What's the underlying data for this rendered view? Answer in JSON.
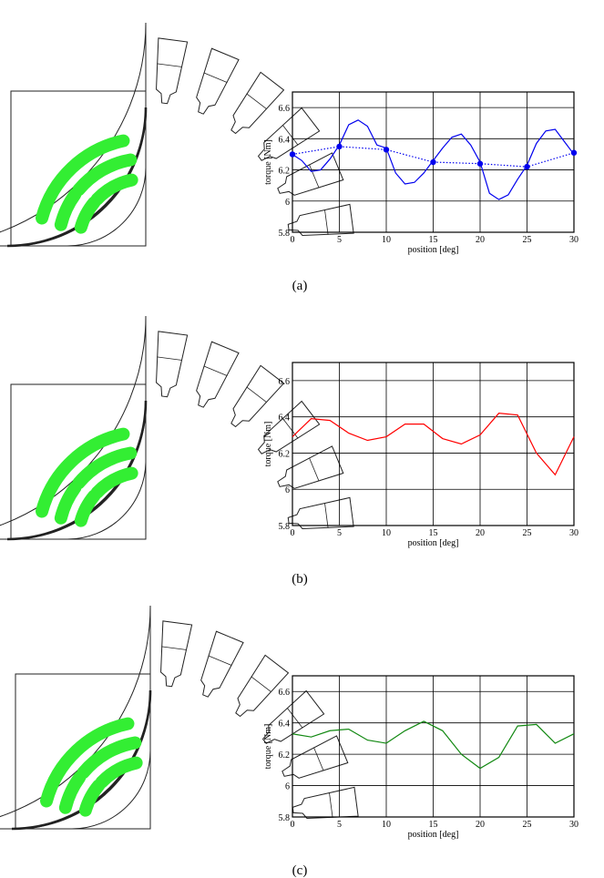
{
  "panels": [
    {
      "label": "(a)"
    },
    {
      "label": "(b)"
    },
    {
      "label": "(c)"
    }
  ],
  "colors": {
    "magnet": "#33ee33",
    "series_a": "#0000ee",
    "series_b": "#ff0000",
    "series_c": "#118811"
  },
  "chart_data": [
    {
      "type": "line",
      "xlabel": "position [deg]",
      "ylabel": "torque [Nm]",
      "xlim": [
        0,
        30
      ],
      "ylim": [
        5.8,
        6.7
      ],
      "xticks": [
        0,
        5,
        10,
        15,
        20,
        25,
        30
      ],
      "yticks": [
        5.8,
        6,
        6.2,
        6.4,
        6.6
      ],
      "grid": true,
      "series": [
        {
          "style": "solid",
          "x": [
            0,
            1,
            2,
            3,
            4,
            5,
            6,
            7,
            8,
            9,
            10,
            11,
            12,
            13,
            14,
            15,
            16,
            17,
            18,
            19,
            20,
            21,
            22,
            23,
            24,
            25,
            26,
            27,
            28,
            29,
            30
          ],
          "y": [
            6.3,
            6.26,
            6.19,
            6.2,
            6.27,
            6.36,
            6.49,
            6.52,
            6.48,
            6.36,
            6.34,
            6.18,
            6.11,
            6.12,
            6.18,
            6.26,
            6.34,
            6.41,
            6.43,
            6.36,
            6.25,
            6.05,
            6.01,
            6.04,
            6.14,
            6.23,
            6.37,
            6.45,
            6.46,
            6.38,
            6.3
          ]
        },
        {
          "style": "dotted-markers",
          "x": [
            0,
            5,
            10,
            15,
            20,
            25,
            30
          ],
          "y": [
            6.3,
            6.35,
            6.33,
            6.25,
            6.24,
            6.22,
            6.31
          ]
        }
      ]
    },
    {
      "type": "line",
      "xlabel": "position [deg]",
      "ylabel": "torque [Nm]",
      "xlim": [
        0,
        30
      ],
      "ylim": [
        5.8,
        6.7
      ],
      "xticks": [
        0,
        5,
        10,
        15,
        20,
        25,
        30
      ],
      "yticks": [
        5.8,
        6,
        6.2,
        6.4,
        6.6
      ],
      "grid": true,
      "series": [
        {
          "style": "solid",
          "x": [
            0,
            2,
            4,
            6,
            8,
            10,
            12,
            14,
            16,
            18,
            20,
            22,
            24,
            26,
            28,
            30
          ],
          "y": [
            6.29,
            6.39,
            6.38,
            6.31,
            6.27,
            6.29,
            6.36,
            6.36,
            6.28,
            6.25,
            6.3,
            6.42,
            6.41,
            6.2,
            6.08,
            6.29
          ]
        }
      ]
    },
    {
      "type": "line",
      "xlabel": "position [deg]",
      "ylabel": "torque [Nm]",
      "xlim": [
        0,
        30
      ],
      "ylim": [
        5.8,
        6.7
      ],
      "xticks": [
        0,
        5,
        10,
        15,
        20,
        25,
        30
      ],
      "yticks": [
        5.8,
        6,
        6.2,
        6.4,
        6.6
      ],
      "grid": true,
      "series": [
        {
          "style": "solid",
          "x": [
            0,
            2,
            4,
            6,
            8,
            10,
            12,
            14,
            16,
            18,
            20,
            22,
            24,
            26,
            28,
            30
          ],
          "y": [
            6.33,
            6.31,
            6.35,
            6.36,
            6.29,
            6.27,
            6.35,
            6.41,
            6.35,
            6.2,
            6.11,
            6.18,
            6.38,
            6.39,
            6.27,
            6.33
          ]
        }
      ]
    }
  ]
}
